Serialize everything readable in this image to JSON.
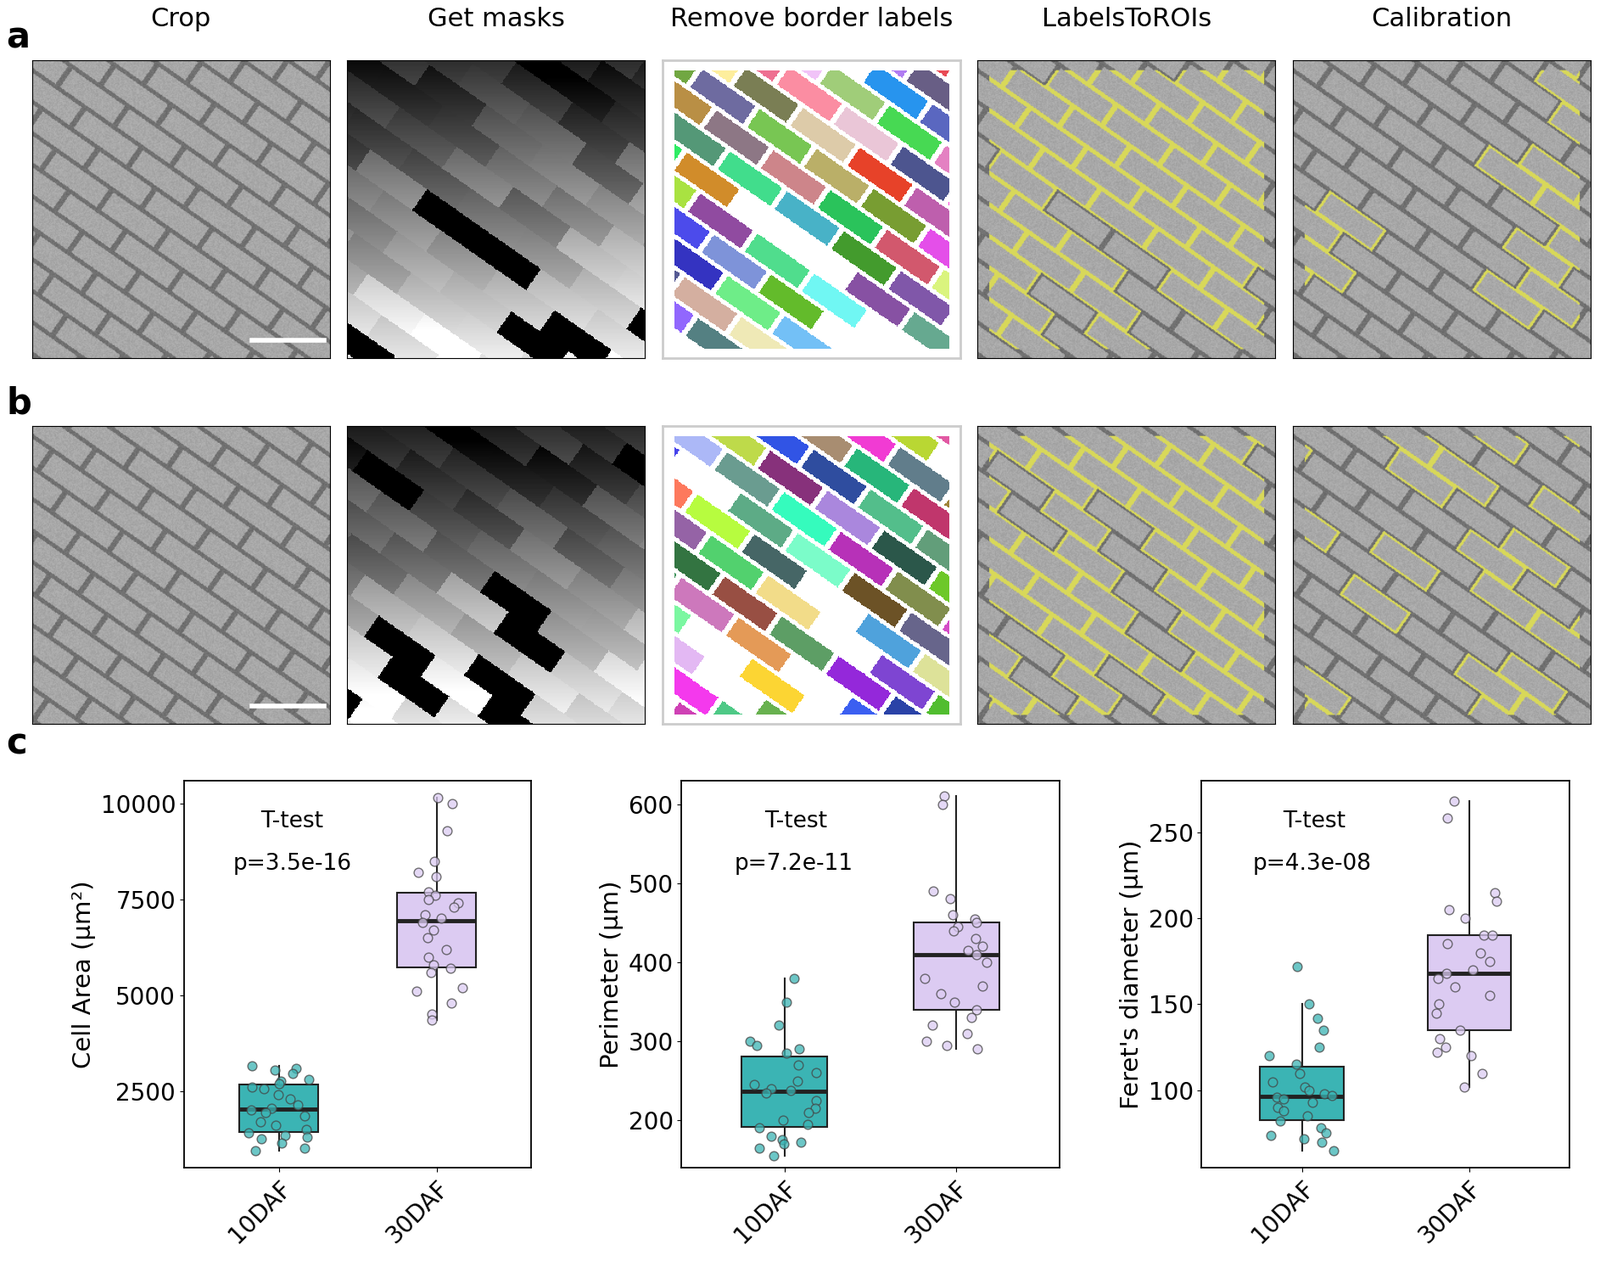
{
  "figure": {
    "panel_labels": [
      "a",
      "b",
      "c"
    ],
    "column_titles": [
      "Crop",
      "Get masks",
      "Remove border labels",
      "LabelsToROIs",
      "Calibration"
    ]
  },
  "chart_data": [
    {
      "type": "box",
      "categories": [
        "10DAF",
        "30DAF"
      ],
      "ylabel": "Cell Area (μm²)",
      "annotations": [
        "T-test",
        "p=3.5e-16"
      ],
      "colors": [
        "#3bb4b4",
        "#dccbf2"
      ],
      "grid": false,
      "ylim": [
        500,
        10600
      ],
      "yticks": [
        2500,
        5000,
        7500,
        10000
      ],
      "values": [
        [
          3150,
          3100,
          3050,
          2950,
          2800,
          2750,
          2700,
          2600,
          2550,
          2400,
          2300,
          2150,
          2050,
          2000,
          1950,
          1850,
          1700,
          1600,
          1500,
          1400,
          1350,
          1300,
          1250,
          1150,
          1000,
          950
        ],
        [
          10150,
          10000,
          9300,
          8500,
          8200,
          8100,
          7700,
          7600,
          7500,
          7400,
          7300,
          7100,
          7000,
          6900,
          6700,
          6500,
          6200,
          6000,
          5800,
          5700,
          5600,
          5200,
          5100,
          4800,
          4500,
          4350
        ]
      ]
    },
    {
      "type": "box",
      "categories": [
        "10DAF",
        "30DAF"
      ],
      "ylabel": "Perimeter (μm)",
      "annotations": [
        "T-test",
        "p=7.2e-11"
      ],
      "colors": [
        "#3bb4b4",
        "#dccbf2"
      ],
      "grid": false,
      "ylim": [
        140,
        630
      ],
      "yticks": [
        200,
        300,
        400,
        500,
        600
      ],
      "values": [
        [
          380,
          350,
          320,
          300,
          295,
          290,
          285,
          270,
          260,
          250,
          245,
          240,
          238,
          235,
          225,
          215,
          210,
          200,
          195,
          190,
          180,
          175,
          172,
          170,
          165,
          155
        ],
        [
          610,
          600,
          490,
          480,
          460,
          455,
          450,
          445,
          440,
          430,
          420,
          415,
          410,
          400,
          380,
          370,
          360,
          350,
          340,
          330,
          320,
          310,
          300,
          295,
          290
        ]
      ]
    },
    {
      "type": "box",
      "categories": [
        "10DAF",
        "30DAF"
      ],
      "ylabel": "Feret's diameter (μm)",
      "annotations": [
        "T-test",
        "p=4.3e-08"
      ],
      "colors": [
        "#3bb4b4",
        "#dccbf2"
      ],
      "grid": false,
      "ylim": [
        55,
        280
      ],
      "yticks": [
        100,
        150,
        200,
        250
      ],
      "values": [
        [
          172,
          150,
          142,
          135,
          125,
          120,
          115,
          110,
          105,
          102,
          100,
          98,
          97,
          96,
          95,
          93,
          90,
          88,
          85,
          82,
          78,
          75,
          74,
          72,
          70,
          65
        ],
        [
          268,
          258,
          215,
          210,
          205,
          200,
          190,
          190,
          185,
          180,
          175,
          170,
          168,
          165,
          160,
          155,
          150,
          145,
          135,
          130,
          125,
          122,
          120,
          110,
          102
        ]
      ]
    }
  ]
}
